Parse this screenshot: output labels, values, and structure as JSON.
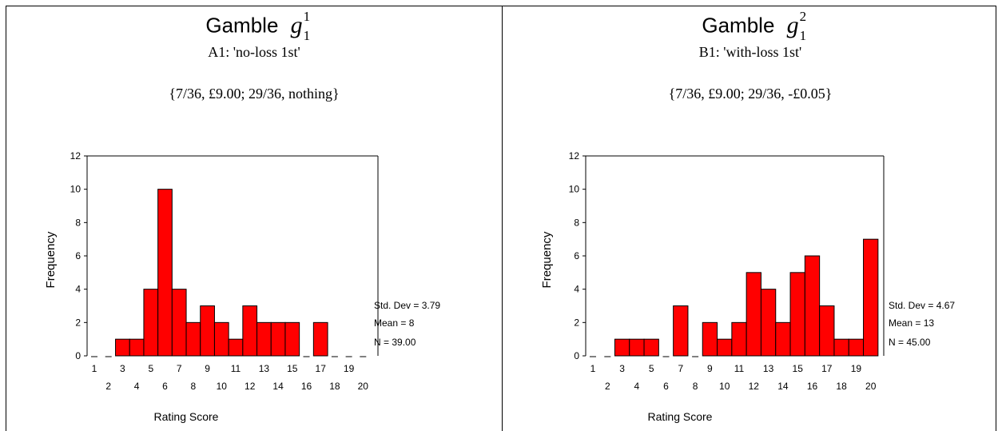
{
  "colors": {
    "bar": "#ff0000",
    "bar_stroke": "#000000"
  },
  "panels": [
    {
      "title_word": "Gamble",
      "title_symbol": "g",
      "title_sub": "1",
      "title_sup": "1",
      "subtitle": "A1: 'no-loss 1st'",
      "gamble": "{7/36, £9.00; 29/36, nothing}",
      "stats": {
        "std_dev": "Std. Dev = 3.79",
        "mean": "Mean = 8",
        "n": "N = 39.00"
      },
      "xlabel": "Rating Score",
      "ylabel": "Frequency"
    },
    {
      "title_word": "Gamble",
      "title_symbol": "g",
      "title_sub": "1",
      "title_sup": "2",
      "subtitle": "B1: 'with-loss 1st'",
      "gamble": "{7/36, £9.00; 29/36, -£0.05}",
      "stats": {
        "std_dev": "Std. Dev = 4.67",
        "mean": "Mean = 13",
        "n": "N = 45.00"
      },
      "xlabel": "Rating Score",
      "ylabel": "Frequency"
    }
  ],
  "chart_data": [
    {
      "type": "bar",
      "title": "Gamble g11",
      "xlabel": "Rating Score",
      "ylabel": "Frequency",
      "categories": [
        "1",
        "2",
        "3",
        "4",
        "5",
        "6",
        "7",
        "8",
        "9",
        "10",
        "11",
        "12",
        "13",
        "14",
        "15",
        "16",
        "17",
        "18",
        "19",
        "20"
      ],
      "values": [
        0,
        0,
        1,
        1,
        4,
        10,
        4,
        2,
        3,
        2,
        1,
        3,
        2,
        2,
        2,
        0,
        2,
        0,
        0,
        0
      ],
      "ylim": [
        0,
        12
      ],
      "yticks": [
        0,
        2,
        4,
        6,
        8,
        10,
        12
      ]
    },
    {
      "type": "bar",
      "title": "Gamble g12",
      "xlabel": "Rating Score",
      "ylabel": "Frequency",
      "categories": [
        "1",
        "2",
        "3",
        "4",
        "5",
        "6",
        "7",
        "8",
        "9",
        "10",
        "11",
        "12",
        "13",
        "14",
        "15",
        "16",
        "17",
        "18",
        "19",
        "20"
      ],
      "values": [
        0,
        0,
        1,
        1,
        1,
        0,
        3,
        0,
        2,
        1,
        2,
        5,
        4,
        2,
        5,
        6,
        3,
        1,
        1,
        7
      ],
      "ylim": [
        0,
        12
      ],
      "yticks": [
        0,
        2,
        4,
        6,
        8,
        10,
        12
      ]
    }
  ]
}
